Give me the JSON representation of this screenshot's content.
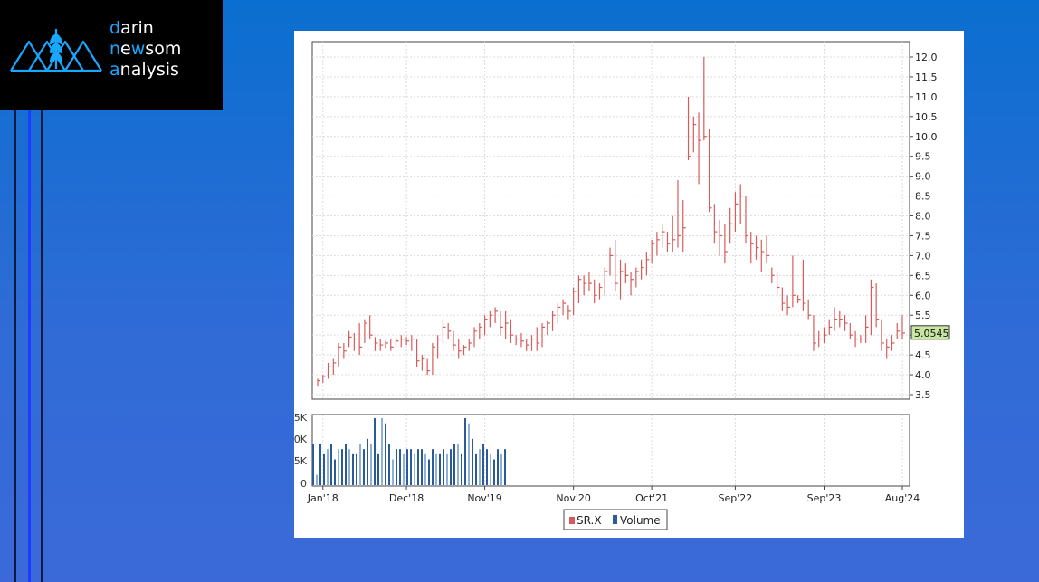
{
  "logo": {
    "line1_initial": "d",
    "line1_rest": "arin",
    "line2_initial": "n",
    "line2_mid1": "e",
    "line2_w": "w",
    "line2_rest": "som",
    "line3_initial": "a",
    "line3_rest": "nalysis",
    "accent_color": "#1aa7ff"
  },
  "chart_data": {
    "type": "ohlc",
    "price_axis": {
      "min": 3.5,
      "max": 12.0,
      "ticks": [
        "3.5",
        "4.0",
        "4.5",
        "5.0",
        "5.5",
        "6.0",
        "6.5",
        "7.0",
        "7.5",
        "8.0",
        "8.5",
        "9.0",
        "9.5",
        "10.0",
        "10.5",
        "11.0",
        "11.5",
        "12.0"
      ]
    },
    "last_price_label": "5.0545",
    "x_tick_labels": [
      "Jan'18",
      "Dec'18",
      "Nov'19",
      "Nov'20",
      "Oct'21",
      "Sep'22",
      "Sep'23",
      "Aug'24"
    ],
    "volume_axis_labels": [
      "5K",
      "0K",
      "5K",
      "0"
    ],
    "legend": [
      "SR.X",
      "Volume"
    ],
    "colors": {
      "price": "#d65c5c",
      "volume": "#2a5a9a",
      "volume_light": "#8fb0d8",
      "last_label_bg": "#c8e6a0"
    },
    "monthly_bars": [
      [
        3.9,
        3.7,
        3.85
      ],
      [
        4.0,
        3.8,
        3.95
      ],
      [
        4.3,
        3.9,
        4.2
      ],
      [
        4.4,
        4.0,
        4.3
      ],
      [
        4.8,
        4.2,
        4.7
      ],
      [
        4.8,
        4.4,
        4.6
      ],
      [
        5.1,
        4.7,
        4.95
      ],
      [
        5.05,
        4.6,
        4.9
      ],
      [
        5.3,
        4.5,
        4.7
      ],
      [
        5.4,
        4.8,
        5.3
      ],
      [
        5.5,
        4.9,
        5.0
      ],
      [
        4.95,
        4.6,
        4.8
      ],
      [
        4.9,
        4.6,
        4.75
      ],
      [
        4.85,
        4.65,
        4.8
      ],
      [
        4.9,
        4.6,
        4.7
      ],
      [
        4.95,
        4.7,
        4.85
      ],
      [
        5.0,
        4.7,
        4.9
      ],
      [
        4.95,
        4.75,
        4.85
      ],
      [
        5.0,
        4.6,
        4.9
      ],
      [
        4.9,
        4.2,
        4.35
      ],
      [
        4.5,
        4.1,
        4.4
      ],
      [
        4.4,
        4.0,
        4.1
      ],
      [
        4.8,
        4.0,
        4.7
      ],
      [
        5.0,
        4.4,
        4.9
      ],
      [
        5.4,
        4.8,
        5.2
      ],
      [
        5.3,
        4.9,
        5.1
      ],
      [
        5.1,
        4.6,
        4.75
      ],
      [
        4.9,
        4.4,
        4.6
      ],
      [
        4.75,
        4.5,
        4.7
      ],
      [
        4.9,
        4.6,
        4.8
      ],
      [
        5.2,
        4.7,
        5.1
      ],
      [
        5.3,
        4.9,
        5.2
      ],
      [
        5.5,
        5.0,
        5.4
      ],
      [
        5.6,
        5.2,
        5.5
      ],
      [
        5.7,
        5.3,
        5.6
      ],
      [
        5.6,
        5.0,
        5.2
      ],
      [
        5.6,
        4.9,
        5.3
      ],
      [
        5.4,
        4.8,
        5.0
      ],
      [
        5.0,
        4.75,
        4.9
      ],
      [
        5.05,
        4.7,
        4.85
      ],
      [
        4.9,
        4.6,
        4.75
      ],
      [
        5.0,
        4.6,
        4.9
      ],
      [
        5.2,
        4.6,
        4.8
      ],
      [
        5.3,
        4.7,
        5.2
      ],
      [
        5.35,
        5.0,
        5.3
      ],
      [
        5.6,
        5.1,
        5.5
      ],
      [
        5.8,
        5.3,
        5.7
      ],
      [
        5.9,
        5.5,
        5.8
      ],
      [
        5.75,
        5.4,
        5.6
      ],
      [
        6.2,
        5.5,
        6.1
      ],
      [
        6.5,
        5.8,
        6.4
      ],
      [
        6.5,
        6.0,
        6.3
      ],
      [
        6.6,
        6.1,
        6.3
      ],
      [
        6.4,
        5.8,
        6.0
      ],
      [
        6.3,
        5.9,
        6.2
      ],
      [
        6.7,
        6.0,
        6.6
      ],
      [
        7.2,
        6.5,
        7.0
      ],
      [
        7.4,
        6.1,
        6.3
      ],
      [
        6.9,
        5.9,
        6.6
      ],
      [
        6.8,
        6.3,
        6.5
      ],
      [
        6.6,
        6.0,
        6.4
      ],
      [
        6.7,
        6.2,
        6.6
      ],
      [
        6.9,
        6.4,
        6.7
      ],
      [
        7.1,
        6.5,
        6.9
      ],
      [
        7.4,
        6.8,
        7.3
      ],
      [
        7.6,
        7.0,
        7.4
      ],
      [
        7.8,
        7.2,
        7.6
      ],
      [
        7.6,
        7.1,
        7.3
      ],
      [
        8.0,
        7.1,
        7.4
      ],
      [
        8.9,
        7.2,
        7.5
      ],
      [
        8.4,
        7.1,
        7.7
      ],
      [
        11.0,
        9.4,
        9.5
      ],
      [
        10.5,
        9.6,
        10.3
      ],
      [
        10.6,
        8.8,
        9.9
      ],
      [
        12.0,
        9.9,
        10.0
      ],
      [
        10.2,
        8.1,
        8.2
      ],
      [
        8.3,
        7.3,
        7.6
      ],
      [
        7.9,
        7.0,
        7.5
      ],
      [
        7.8,
        6.8,
        7.1
      ],
      [
        8.2,
        7.3,
        7.8
      ],
      [
        8.6,
        7.6,
        8.3
      ],
      [
        8.8,
        7.8,
        8.5
      ],
      [
        8.5,
        7.3,
        7.5
      ],
      [
        7.6,
        6.8,
        7.3
      ],
      [
        7.5,
        6.9,
        7.2
      ],
      [
        7.4,
        6.6,
        7.1
      ],
      [
        7.5,
        6.8,
        7.0
      ],
      [
        6.7,
        6.3,
        6.5
      ],
      [
        6.6,
        6.0,
        6.2
      ],
      [
        6.2,
        5.6,
        5.8
      ],
      [
        6.0,
        5.5,
        5.7
      ],
      [
        7.0,
        5.7,
        6.0
      ],
      [
        6.0,
        5.8,
        5.9
      ],
      [
        6.9,
        5.6,
        5.8
      ],
      [
        5.9,
        5.4,
        5.5
      ],
      [
        5.5,
        4.6,
        4.8
      ],
      [
        5.1,
        4.7,
        4.9
      ],
      [
        5.2,
        4.8,
        5.0
      ],
      [
        5.4,
        5.0,
        5.2
      ],
      [
        5.7,
        5.1,
        5.4
      ],
      [
        5.6,
        5.2,
        5.4
      ],
      [
        5.5,
        5.1,
        5.3
      ],
      [
        5.3,
        4.9,
        5.0
      ],
      [
        5.1,
        4.7,
        4.9
      ],
      [
        5.0,
        4.8,
        4.9
      ],
      [
        5.5,
        4.8,
        5.2
      ],
      [
        6.4,
        5.0,
        6.2
      ],
      [
        6.3,
        5.2,
        5.4
      ],
      [
        5.4,
        4.6,
        4.8
      ],
      [
        4.9,
        4.4,
        4.7
      ],
      [
        5.0,
        4.6,
        4.8
      ],
      [
        5.3,
        4.9,
        5.1
      ],
      [
        5.5,
        4.9,
        5.05
      ]
    ],
    "volume_bars": [
      8,
      2,
      8,
      6,
      7,
      8,
      5,
      7,
      7,
      8,
      7,
      6,
      6,
      8,
      7,
      9,
      8,
      13,
      6,
      13,
      12,
      8,
      5,
      7,
      7,
      6,
      7,
      7,
      6,
      7,
      7,
      6,
      5,
      7,
      6,
      6,
      7,
      6,
      7,
      8,
      8,
      6,
      13,
      12,
      9,
      6,
      7,
      8,
      7,
      6,
      5,
      7,
      6,
      7
    ]
  }
}
